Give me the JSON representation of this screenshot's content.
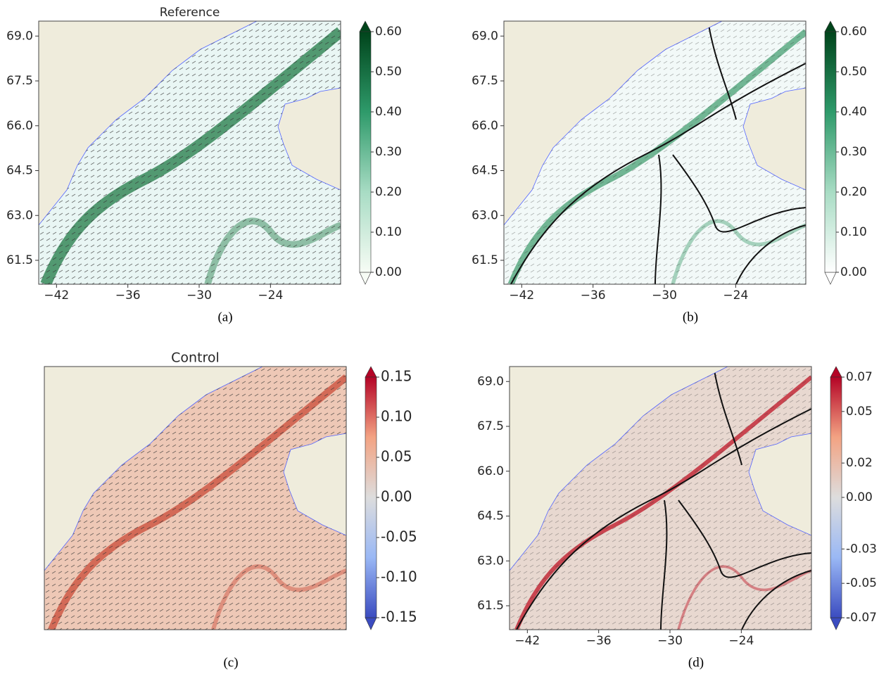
{
  "panels": [
    {
      "title": "Reference",
      "caption": "(a)",
      "xlim": [
        -43.5,
        -18.1
      ],
      "ylim": [
        60.7,
        69.5
      ],
      "xticks": [
        {
          "value": -42,
          "label": "−42"
        },
        {
          "value": -36,
          "label": "−36"
        },
        {
          "value": -30,
          "label": "−30"
        },
        {
          "value": -24,
          "label": "−24"
        }
      ],
      "yticks": [
        {
          "value": 69,
          "label": "69.0"
        },
        {
          "value": 67.5,
          "label": "67.5"
        },
        {
          "value": 66,
          "label": "66.0"
        },
        {
          "value": 64.5,
          "label": "64.5"
        },
        {
          "value": 63,
          "label": "63.0"
        },
        {
          "value": 61.5,
          "label": "61.5"
        }
      ],
      "colorbar": {
        "lim": [
          0,
          0.6
        ],
        "colors": [
          "#f7fcf5",
          "#a8dcc4",
          "#2e9a6a",
          "#00441b"
        ],
        "ticks": [
          {
            "value": 0.6,
            "label": "0.60"
          },
          {
            "value": 0.5,
            "label": "0.50"
          },
          {
            "value": 0.4,
            "label": "0.40"
          },
          {
            "value": 0.3,
            "label": "0.30"
          },
          {
            "value": 0.2,
            "label": "0.20"
          },
          {
            "value": 0.1,
            "label": "0.10"
          },
          {
            "value": 0,
            "label": "0.00"
          }
        ]
      }
    },
    {
      "caption": "(b)",
      "xlim": [
        -43.5,
        -18.1
      ],
      "ylim": [
        60.7,
        69.5
      ],
      "xticks": [
        {
          "value": -42,
          "label": "−42"
        },
        {
          "value": -36,
          "label": "−36"
        },
        {
          "value": -30,
          "label": "−30"
        },
        {
          "value": -24,
          "label": "−24"
        }
      ],
      "yticks": [
        {
          "value": 69,
          "label": "69.0"
        },
        {
          "value": 67.5,
          "label": "67.5"
        },
        {
          "value": 66,
          "label": "66.0"
        },
        {
          "value": 64.5,
          "label": "64.5"
        },
        {
          "value": 63,
          "label": "63.0"
        },
        {
          "value": 61.5,
          "label": "61.5"
        }
      ],
      "colorbar": {
        "lim": [
          0,
          0.6
        ],
        "colors": [
          "#ffffff",
          "#a8dcc4",
          "#2e9a6a",
          "#00441b"
        ],
        "ticks": [
          {
            "value": 0.6,
            "label": "0.60"
          },
          {
            "value": 0.5,
            "label": "0.50"
          },
          {
            "value": 0.4,
            "label": "0.40"
          },
          {
            "value": 0.3,
            "label": "0.30"
          },
          {
            "value": 0.2,
            "label": "0.20"
          },
          {
            "value": 0.1,
            "label": "0.10"
          },
          {
            "value": 0,
            "label": "0.00"
          }
        ]
      }
    },
    {
      "title": "Control",
      "caption": "(c)",
      "colorbar": {
        "lim": [
          -0.15,
          0.15
        ],
        "colors": [
          "#3b4cc0",
          "#9ab8f5",
          "#dddddd",
          "#f3a383",
          "#b40426"
        ],
        "ticks": [
          {
            "value": 0.15,
            "label": "0.15"
          },
          {
            "value": 0.1,
            "label": "0.10"
          },
          {
            "value": 0.05,
            "label": "0.05"
          },
          {
            "value": 0,
            "label": "0.00"
          },
          {
            "value": -0.05,
            "label": "-0.05"
          },
          {
            "value": -0.1,
            "label": "-0.10"
          },
          {
            "value": -0.15,
            "label": "-0.15"
          }
        ]
      }
    },
    {
      "caption": "(d)",
      "xlim": [
        -43.5,
        -18.1
      ],
      "ylim": [
        60.7,
        69.5
      ],
      "xticks": [
        {
          "value": -42,
          "label": "−42"
        },
        {
          "value": -36,
          "label": "−36"
        },
        {
          "value": -30,
          "label": "−30"
        },
        {
          "value": -24,
          "label": "−24"
        }
      ],
      "yticks": [
        {
          "value": 69,
          "label": "69.0"
        },
        {
          "value": 67.5,
          "label": "67.5"
        },
        {
          "value": 66,
          "label": "66.0"
        },
        {
          "value": 64.5,
          "label": "64.5"
        },
        {
          "value": 63,
          "label": "63.0"
        },
        {
          "value": 61.5,
          "label": "61.5"
        }
      ],
      "colorbar": {
        "lim": [
          -0.07,
          0.07
        ],
        "colors": [
          "#3b4cc0",
          "#9ab8f5",
          "#dddddd",
          "#f3a383",
          "#b40426"
        ],
        "ticks": [
          {
            "value": 0.07,
            "label": "0.07"
          },
          {
            "value": 0.05,
            "label": "0.05"
          },
          {
            "value": 0.02,
            "label": "0.02"
          },
          {
            "value": 0,
            "label": "0.00"
          },
          {
            "value": -0.03,
            "label": "-0.03"
          },
          {
            "value": -0.05,
            "label": "-0.05"
          },
          {
            "value": -0.07,
            "label": "-0.07"
          }
        ]
      }
    }
  ]
}
